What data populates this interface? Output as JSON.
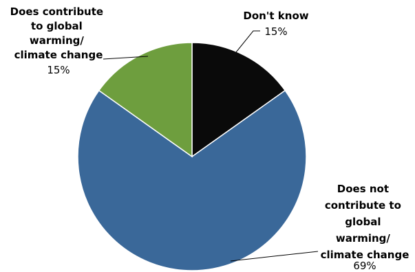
{
  "chart_data": {
    "type": "pie",
    "title": "",
    "slices": [
      {
        "name": "Don't know",
        "lines": [
          "Don't know"
        ],
        "value": 15,
        "label": "15%",
        "color": "#0a0a0a"
      },
      {
        "name": "Does not contribute to global warming/ climate change",
        "lines": [
          "Does not",
          "contribute to",
          "global",
          "warming/",
          "climate change"
        ],
        "value": 69,
        "label": "69%",
        "color": "#3a6899"
      },
      {
        "name": "Does contribute to global warming/ climate change",
        "lines": [
          "Does contribute",
          "to global",
          "warming/",
          "climate change"
        ],
        "value": 15,
        "label": "15%",
        "color": "#6e9e3e"
      }
    ],
    "start_angle_deg": 0,
    "direction": "clockwise",
    "legend": "none",
    "labels": "outside with leader lines"
  }
}
